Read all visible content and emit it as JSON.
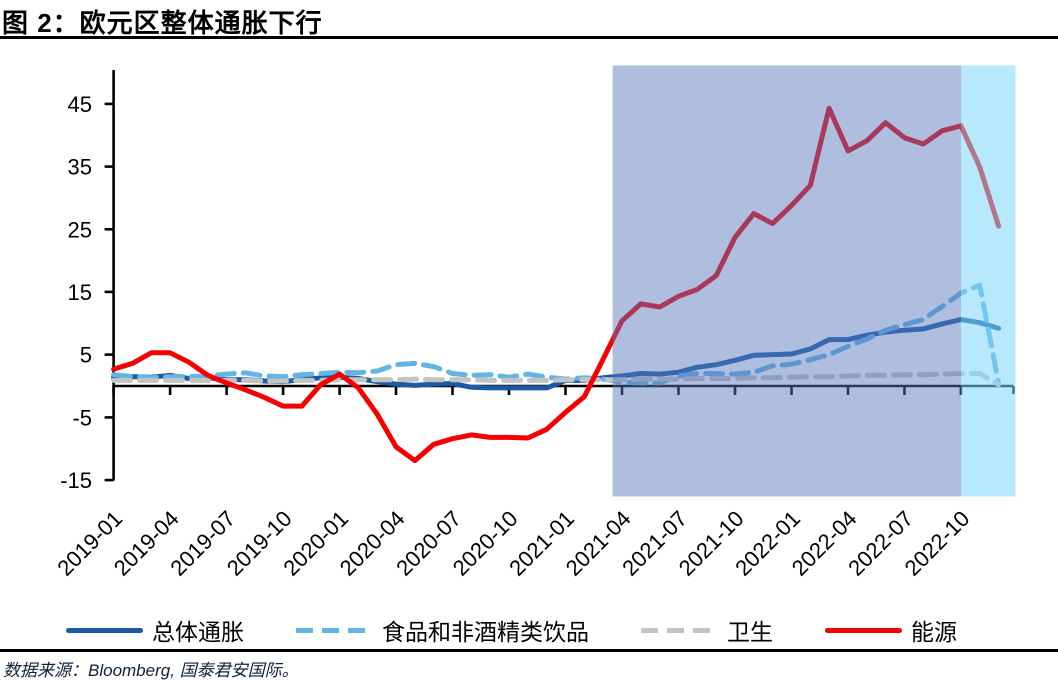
{
  "page": {
    "title": "图 2：欧元区整体通胀下行",
    "source_note": "数据来源：Bloomberg, 国泰君安国际。"
  },
  "chart_data": {
    "type": "line",
    "title": "欧元区整体通胀下行",
    "xlabel": "",
    "ylabel": "",
    "ylim": [
      -15,
      51
    ],
    "y_ticks": [
      -15,
      -5,
      5,
      15,
      25,
      35,
      45
    ],
    "grid": false,
    "legend_position": "bottom",
    "x": [
      "2019-01",
      "2019-02",
      "2019-03",
      "2019-04",
      "2019-05",
      "2019-06",
      "2019-07",
      "2019-08",
      "2019-09",
      "2019-10",
      "2019-11",
      "2019-12",
      "2020-01",
      "2020-02",
      "2020-03",
      "2020-04",
      "2020-05",
      "2020-06",
      "2020-07",
      "2020-08",
      "2020-09",
      "2020-10",
      "2020-11",
      "2020-12",
      "2021-01",
      "2021-02",
      "2021-03",
      "2021-04",
      "2021-05",
      "2021-06",
      "2021-07",
      "2021-08",
      "2021-09",
      "2021-10",
      "2021-11",
      "2021-12",
      "2022-01",
      "2022-02",
      "2022-03",
      "2022-04",
      "2022-05",
      "2022-06",
      "2022-07",
      "2022-08",
      "2022-09",
      "2022-10",
      "2022-11",
      "2022-12"
    ],
    "x_tick_labels": [
      "2019-01",
      "2019-04",
      "2019-07",
      "2019-10",
      "2020-01",
      "2020-04",
      "2020-07",
      "2020-10",
      "2021-01",
      "2021-04",
      "2021-07",
      "2021-10",
      "2022-01",
      "2022-04",
      "2022-07",
      "2022-10"
    ],
    "series": [
      {
        "id": "overall",
        "name": "总体通胀",
        "color": "#1c5aa6",
        "line_style": "solid",
        "values": [
          1.4,
          1.5,
          1.4,
          1.7,
          1.2,
          1.3,
          1.0,
          1.0,
          0.8,
          0.7,
          1.0,
          1.3,
          1.4,
          1.2,
          0.7,
          0.3,
          0.1,
          0.3,
          0.4,
          -0.2,
          -0.3,
          -0.3,
          -0.3,
          -0.3,
          0.9,
          0.9,
          1.3,
          1.6,
          2.0,
          1.9,
          2.2,
          3.0,
          3.4,
          4.1,
          4.9,
          5.0,
          5.1,
          5.9,
          7.4,
          7.4,
          8.1,
          8.6,
          8.9,
          9.1,
          9.9,
          10.6,
          10.1,
          9.2
        ]
      },
      {
        "id": "food-nonalcoholic-beverages",
        "name": "食品和非酒精类饮品",
        "color": "#62b5e5",
        "line_style": "dashed",
        "values": [
          1.8,
          1.5,
          1.3,
          1.5,
          1.5,
          1.6,
          1.9,
          2.1,
          1.6,
          1.5,
          1.8,
          2.0,
          2.2,
          2.1,
          2.4,
          3.4,
          3.6,
          3.1,
          2.0,
          1.7,
          1.8,
          1.4,
          1.9,
          1.4,
          1.1,
          1.3,
          1.1,
          0.6,
          0.5,
          0.5,
          1.6,
          2.0,
          2.0,
          1.9,
          2.2,
          3.2,
          3.5,
          4.2,
          5.0,
          6.3,
          7.5,
          8.9,
          9.8,
          10.6,
          12.7,
          14.8,
          16.1,
          0.4
        ]
      },
      {
        "id": "health",
        "name": "卫生",
        "color": "#c3c3c3",
        "line_style": "dashed",
        "values": [
          0.9,
          0.9,
          0.9,
          0.9,
          0.9,
          0.9,
          0.9,
          0.9,
          0.8,
          0.8,
          0.9,
          0.9,
          1.0,
          1.0,
          1.0,
          1.0,
          1.1,
          1.0,
          1.0,
          1.0,
          0.9,
          0.9,
          0.9,
          0.9,
          1.0,
          1.0,
          1.0,
          1.0,
          1.1,
          1.1,
          1.1,
          1.2,
          1.2,
          1.2,
          1.3,
          1.3,
          1.4,
          1.5,
          1.5,
          1.6,
          1.7,
          1.7,
          1.8,
          1.8,
          1.9,
          2.0,
          2.0,
          0.2
        ]
      },
      {
        "id": "energy",
        "name": "能源",
        "color": "#f40000",
        "line_style": "solid",
        "values": [
          2.7,
          3.6,
          5.3,
          5.3,
          3.8,
          1.7,
          0.5,
          -0.6,
          -1.8,
          -3.2,
          -3.2,
          0.2,
          1.9,
          -0.3,
          -4.5,
          -9.7,
          -11.9,
          -9.3,
          -8.4,
          -7.8,
          -8.2,
          -8.2,
          -8.3,
          -6.9,
          -4.2,
          -1.7,
          4.3,
          10.4,
          13.1,
          12.6,
          14.3,
          15.4,
          17.6,
          23.7,
          27.5,
          25.9,
          28.8,
          32.0,
          44.3,
          37.5,
          39.1,
          42.0,
          39.6,
          38.6,
          40.7,
          41.5,
          34.9,
          25.5
        ]
      }
    ],
    "highlight_regions": [
      {
        "id": "dark-blue-band",
        "from": "2021-03",
        "to": "2022-10",
        "from_index": 26.5,
        "to_index": 45,
        "color": "rgba(88,120,189,0.48)"
      },
      {
        "id": "light-blue-band",
        "from": "2022-10",
        "to": "2022-12",
        "from_index": 45,
        "to_index": 47.9,
        "color": "rgba(125,214,248,0.55)"
      }
    ]
  }
}
